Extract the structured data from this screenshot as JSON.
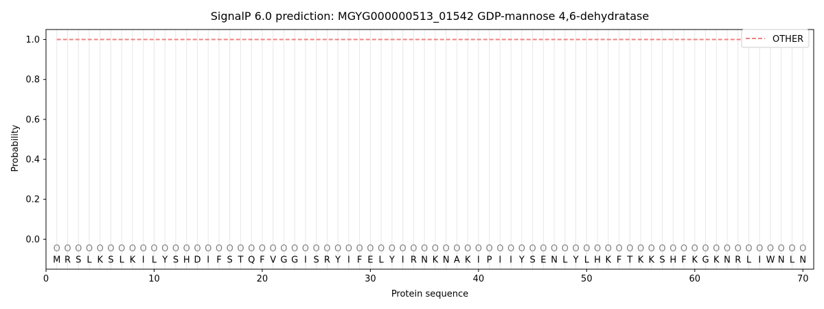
{
  "chart_data": {
    "type": "line",
    "title": "SignalP 6.0 prediction: MGYG000000513_01542 GDP-mannose 4,6-dehydratase",
    "xlabel": "Protein sequence",
    "ylabel": "Probability",
    "xlim": [
      0,
      71
    ],
    "ylim": [
      -0.15,
      1.05
    ],
    "xticks": [
      "0",
      "10",
      "20",
      "30",
      "40",
      "50",
      "60",
      "70"
    ],
    "yticks": [
      "0.0",
      "0.2",
      "0.4",
      "0.6",
      "0.8",
      "1.0"
    ],
    "grid": "vertical lines at each residue",
    "legend_position": "top-right",
    "sequence": [
      "M",
      "R",
      "S",
      "L",
      "K",
      "S",
      "L",
      "K",
      "I",
      "L",
      "Y",
      "S",
      "H",
      "D",
      "I",
      "F",
      "S",
      "T",
      "Q",
      "F",
      "V",
      "G",
      "G",
      "I",
      "S",
      "R",
      "Y",
      "I",
      "F",
      "E",
      "L",
      "Y",
      "I",
      "R",
      "N",
      "K",
      "N",
      "A",
      "K",
      "I",
      "P",
      "I",
      "I",
      "Y",
      "S",
      "E",
      "N",
      "L",
      "Y",
      "L",
      "H",
      "K",
      "F",
      "T",
      "K",
      "K",
      "S",
      "H",
      "F",
      "K",
      "G",
      "K",
      "N",
      "R",
      "L",
      "I",
      "W",
      "N",
      "L",
      "N"
    ],
    "predicted_label": "O",
    "label_row_y": -0.045,
    "series": [
      {
        "name": "OTHER",
        "style": "dashed",
        "color": "#f08080",
        "x_start": 1,
        "x_end": 70,
        "value": 1.0
      }
    ]
  }
}
